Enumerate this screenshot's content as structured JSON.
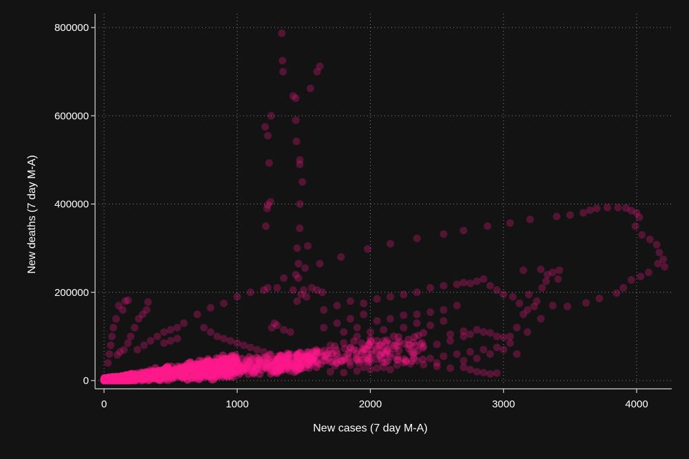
{
  "chart_data": {
    "type": "scatter",
    "xlabel": "New cases (7 day M-A)",
    "ylabel": "New deaths (7 day M-A)",
    "xlim": [
      -20,
      4300
    ],
    "ylim": [
      -12000,
      810000
    ],
    "x_ticks": [
      0,
      1000,
      2000,
      3000,
      4000
    ],
    "y_ticks": [
      0,
      200000,
      400000,
      600000,
      800000
    ],
    "x_tick_labels": [
      "0",
      "1000",
      "2000",
      "3000",
      "4000"
    ],
    "y_tick_labels": [
      "0",
      "200000",
      "400000",
      "600000",
      "800000"
    ],
    "grid": true,
    "marker_color": "#ff1a8c",
    "marker_opacity": 0.28,
    "series": [
      {
        "values": [
          [
            1335,
            787000
          ],
          [
            1340,
            725000
          ],
          [
            1345,
            700000
          ],
          [
            1620,
            712000
          ],
          [
            1600,
            700000
          ],
          [
            1550,
            662000
          ],
          [
            1420,
            645000
          ],
          [
            1440,
            640000
          ],
          [
            1255,
            600000
          ],
          [
            1210,
            575000
          ],
          [
            1440,
            590000
          ],
          [
            1230,
            555000
          ],
          [
            1445,
            542000
          ],
          [
            1470,
            500000
          ],
          [
            1470,
            490000
          ],
          [
            1240,
            493000
          ],
          [
            1490,
            450000
          ],
          [
            1250,
            405000
          ],
          [
            1230,
            398000
          ],
          [
            1225,
            390000
          ],
          [
            1470,
            400000
          ],
          [
            1470,
            345000
          ],
          [
            1215,
            350000
          ],
          [
            1450,
            300000
          ],
          [
            1530,
            305000
          ],
          [
            1620,
            265000
          ],
          [
            1460,
            265000
          ],
          [
            1510,
            255000
          ],
          [
            1440,
            240000
          ],
          [
            1460,
            232000
          ],
          [
            1350,
            232000
          ],
          [
            1420,
            205000
          ],
          [
            1230,
            210000
          ],
          [
            1780,
            280000
          ],
          [
            1980,
            298000
          ],
          [
            2150,
            310000
          ],
          [
            2350,
            322000
          ],
          [
            2550,
            332000
          ],
          [
            2700,
            340000
          ],
          [
            2880,
            350000
          ],
          [
            3050,
            357000
          ],
          [
            3200,
            365000
          ],
          [
            3400,
            372000
          ],
          [
            3500,
            375000
          ],
          [
            3600,
            380000
          ],
          [
            3650,
            386000
          ],
          [
            3700,
            390000
          ],
          [
            3780,
            392000
          ],
          [
            3860,
            392000
          ],
          [
            3920,
            391000
          ],
          [
            3960,
            385000
          ],
          [
            4000,
            380000
          ],
          [
            4020,
            370000
          ],
          [
            3990,
            350000
          ],
          [
            4040,
            330000
          ],
          [
            4100,
            320000
          ],
          [
            4150,
            308000
          ],
          [
            4170,
            290000
          ],
          [
            4200,
            275000
          ],
          [
            4160,
            265000
          ],
          [
            4210,
            258000
          ],
          [
            4090,
            245000
          ],
          [
            4030,
            236000
          ],
          [
            3960,
            228000
          ],
          [
            3900,
            210000
          ],
          [
            3850,
            198000
          ],
          [
            3720,
            186000
          ],
          [
            3620,
            176000
          ],
          [
            3480,
            168000
          ],
          [
            3150,
            250000
          ],
          [
            3280,
            252000
          ],
          [
            3330,
            240000
          ],
          [
            3370,
            245000
          ],
          [
            3420,
            250000
          ],
          [
            3320,
            225000
          ],
          [
            3290,
            210000
          ],
          [
            3410,
            230000
          ],
          [
            3190,
            195000
          ],
          [
            3250,
            180000
          ],
          [
            3370,
            170000
          ],
          [
            3230,
            168000
          ],
          [
            3180,
            160000
          ],
          [
            3120,
            175000
          ],
          [
            3070,
            190000
          ],
          [
            3150,
            150000
          ],
          [
            3280,
            140000
          ],
          [
            3100,
            120000
          ],
          [
            3050,
            100000
          ],
          [
            3180,
            110000
          ],
          [
            110,
            170000
          ],
          [
            160,
            180000
          ],
          [
            180,
            182000
          ],
          [
            140,
            160000
          ],
          [
            90,
            140000
          ],
          [
            70,
            120000
          ],
          [
            60,
            100000
          ],
          [
            50,
            80000
          ],
          [
            40,
            60000
          ],
          [
            30,
            40000
          ],
          [
            330,
            178000
          ],
          [
            320,
            160000
          ],
          [
            290,
            150000
          ],
          [
            260,
            140000
          ],
          [
            230,
            120000
          ],
          [
            200,
            100000
          ],
          [
            180,
            85000
          ],
          [
            150,
            70000
          ],
          [
            120,
            65000
          ],
          [
            100,
            58000
          ],
          [
            600,
            130000
          ],
          [
            700,
            150000
          ],
          [
            800,
            165000
          ],
          [
            900,
            175000
          ],
          [
            1000,
            190000
          ],
          [
            1100,
            200000
          ],
          [
            1200,
            205000
          ],
          [
            1300,
            210000
          ],
          [
            1500,
            205000
          ],
          [
            1560,
            210000
          ],
          [
            1600,
            205000
          ],
          [
            1640,
            200000
          ],
          [
            1520,
            190000
          ],
          [
            1450,
            180000
          ],
          [
            1480,
            195000
          ],
          [
            1650,
            160000
          ],
          [
            1750,
            170000
          ],
          [
            1850,
            180000
          ],
          [
            1950,
            175000
          ],
          [
            2050,
            185000
          ],
          [
            2150,
            190000
          ],
          [
            2250,
            195000
          ],
          [
            2350,
            200000
          ],
          [
            2450,
            210000
          ],
          [
            2550,
            215000
          ],
          [
            2650,
            218000
          ],
          [
            2700,
            222000
          ],
          [
            2750,
            220000
          ],
          [
            2800,
            225000
          ],
          [
            2850,
            230000
          ],
          [
            2900,
            215000
          ],
          [
            2950,
            205000
          ],
          [
            3000,
            195000
          ],
          [
            2650,
            170000
          ],
          [
            2550,
            160000
          ],
          [
            2450,
            155000
          ],
          [
            2350,
            150000
          ],
          [
            2250,
            148000
          ],
          [
            2150,
            140000
          ],
          [
            2050,
            135000
          ],
          [
            1950,
            150000
          ],
          [
            1850,
            140000
          ],
          [
            1750,
            130000
          ],
          [
            1650,
            120000
          ],
          [
            2800,
            115000
          ],
          [
            2850,
            110000
          ],
          [
            2900,
            108000
          ],
          [
            2950,
            100000
          ],
          [
            3000,
            98000
          ],
          [
            3050,
            85000
          ],
          [
            2950,
            75000
          ],
          [
            2850,
            70000
          ],
          [
            2750,
            65000
          ],
          [
            2650,
            60000
          ],
          [
            2550,
            55000
          ],
          [
            2450,
            50000
          ],
          [
            2350,
            45000
          ],
          [
            2250,
            40000
          ],
          [
            2700,
            30000
          ],
          [
            2750,
            25000
          ],
          [
            2800,
            20000
          ],
          [
            2850,
            18000
          ],
          [
            2900,
            15000
          ],
          [
            2950,
            17000
          ],
          [
            2600,
            28000
          ],
          [
            2500,
            32000
          ],
          [
            1280,
            130000
          ],
          [
            1300,
            125000
          ],
          [
            1260,
            120000
          ],
          [
            1350,
            115000
          ],
          [
            1400,
            110000
          ],
          [
            1900,
            100000
          ],
          [
            2000,
            95000
          ],
          [
            2100,
            90000
          ],
          [
            2200,
            85000
          ],
          [
            2300,
            80000
          ],
          [
            2400,
            78000
          ],
          [
            2500,
            82000
          ],
          [
            2600,
            90000
          ],
          [
            2700,
            100000
          ],
          [
            2750,
            105000
          ],
          [
            1700,
            80000
          ],
          [
            1800,
            85000
          ],
          [
            1850,
            75000
          ],
          [
            1950,
            70000
          ],
          [
            2050,
            65000
          ],
          [
            2150,
            60000
          ],
          [
            1600,
            60000
          ],
          [
            1500,
            55000
          ],
          [
            1550,
            50000
          ],
          [
            1650,
            45000
          ],
          [
            1750,
            40000
          ],
          [
            1850,
            35000
          ],
          [
            1950,
            30000
          ],
          [
            2050,
            28000
          ],
          [
            2150,
            25000
          ],
          [
            1400,
            40000
          ],
          [
            1450,
            45000
          ],
          [
            1350,
            50000
          ],
          [
            1300,
            55000
          ],
          [
            1250,
            60000
          ],
          [
            1200,
            65000
          ],
          [
            1150,
            70000
          ],
          [
            1100,
            75000
          ],
          [
            1050,
            80000
          ],
          [
            1000,
            85000
          ],
          [
            950,
            90000
          ],
          [
            900,
            95000
          ],
          [
            850,
            100000
          ],
          [
            800,
            110000
          ],
          [
            750,
            120000
          ],
          [
            400,
            100000
          ],
          [
            450,
            110000
          ],
          [
            500,
            115000
          ],
          [
            550,
            120000
          ],
          [
            350,
            90000
          ],
          [
            300,
            80000
          ],
          [
            250,
            70000
          ],
          [
            450,
            85000
          ],
          [
            500,
            90000
          ],
          [
            550,
            95000
          ],
          [
            2250,
            120000
          ],
          [
            2350,
            130000
          ],
          [
            2450,
            125000
          ],
          [
            2550,
            135000
          ],
          [
            2100,
            115000
          ],
          [
            2000,
            110000
          ],
          [
            1900,
            120000
          ],
          [
            1800,
            110000
          ],
          [
            2600,
            105000
          ],
          [
            2700,
            112000
          ],
          [
            3000,
            70000
          ],
          [
            2900,
            60000
          ],
          [
            2800,
            50000
          ],
          [
            2700,
            45000
          ],
          [
            3100,
            60000
          ],
          [
            1700,
            20000
          ],
          [
            1800,
            18000
          ],
          [
            1900,
            22000
          ],
          [
            2000,
            25000
          ],
          [
            2100,
            30000
          ],
          [
            2200,
            35000
          ],
          [
            2300,
            38000
          ],
          [
            2400,
            36000
          ],
          [
            2500,
            40000
          ],
          [
            1100,
            30000
          ],
          [
            1150,
            35000
          ],
          [
            1200,
            40000
          ],
          [
            1250,
            45000
          ],
          [
            1300,
            42000
          ],
          [
            1000,
            50000
          ],
          [
            950,
            55000
          ],
          [
            900,
            48000
          ],
          [
            1050,
            40000
          ],
          [
            980,
            35000
          ],
          [
            850,
            30000
          ],
          [
            800,
            25000
          ],
          [
            750,
            35000
          ],
          [
            700,
            30000
          ],
          [
            650,
            25000
          ]
        ]
      }
    ],
    "dense_clusters": [
      {
        "x_range": [
          0,
          1000
        ],
        "slope_low": 8,
        "slope_high": 60,
        "count": 650,
        "opacity": 0.45
      },
      {
        "x_range": [
          0,
          200
        ],
        "slope_low": 0,
        "slope_high": 40,
        "count": 300,
        "opacity": 0.55
      },
      {
        "x_range": [
          700,
          1600
        ],
        "slope_low": 15,
        "slope_high": 45,
        "count": 260,
        "opacity": 0.4
      },
      {
        "x_range": [
          1300,
          2400
        ],
        "slope_low": 20,
        "slope_high": 45,
        "count": 200,
        "opacity": 0.32
      }
    ]
  }
}
